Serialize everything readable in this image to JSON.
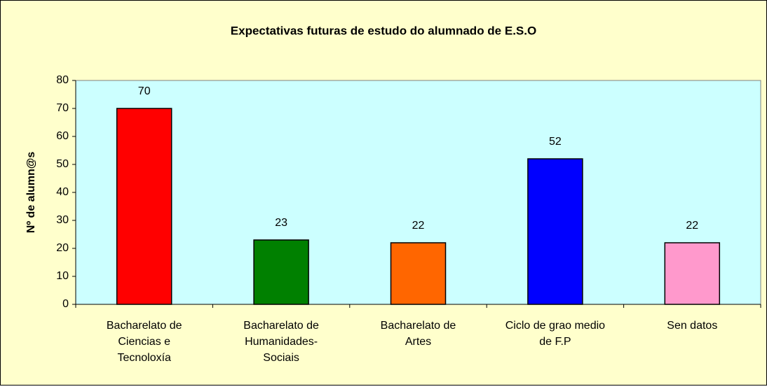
{
  "chart_data": {
    "type": "bar",
    "title": "Expectativas futuras de estudo do alumnado de E.S.O",
    "y_label": "Nº de alumn@s",
    "categories": [
      "Bacharelato de\nCiencias e\nTecnoloxía",
      "Bacharelato de\nHumanidades-\nSociais",
      "Bacharelato de\nArtes",
      "Ciclo de grao medio\nde F.P",
      "Sen datos"
    ],
    "values": [
      70,
      23,
      22,
      52,
      22
    ],
    "colors": [
      "#ff0000",
      "#008000",
      "#ff6600",
      "#0000ff",
      "#ff99cc"
    ],
    "ylim": [
      0,
      80
    ],
    "yticks": [
      0,
      10,
      20,
      30,
      40,
      50,
      60,
      70,
      80
    ],
    "grid": false,
    "show_value_labels": true
  }
}
